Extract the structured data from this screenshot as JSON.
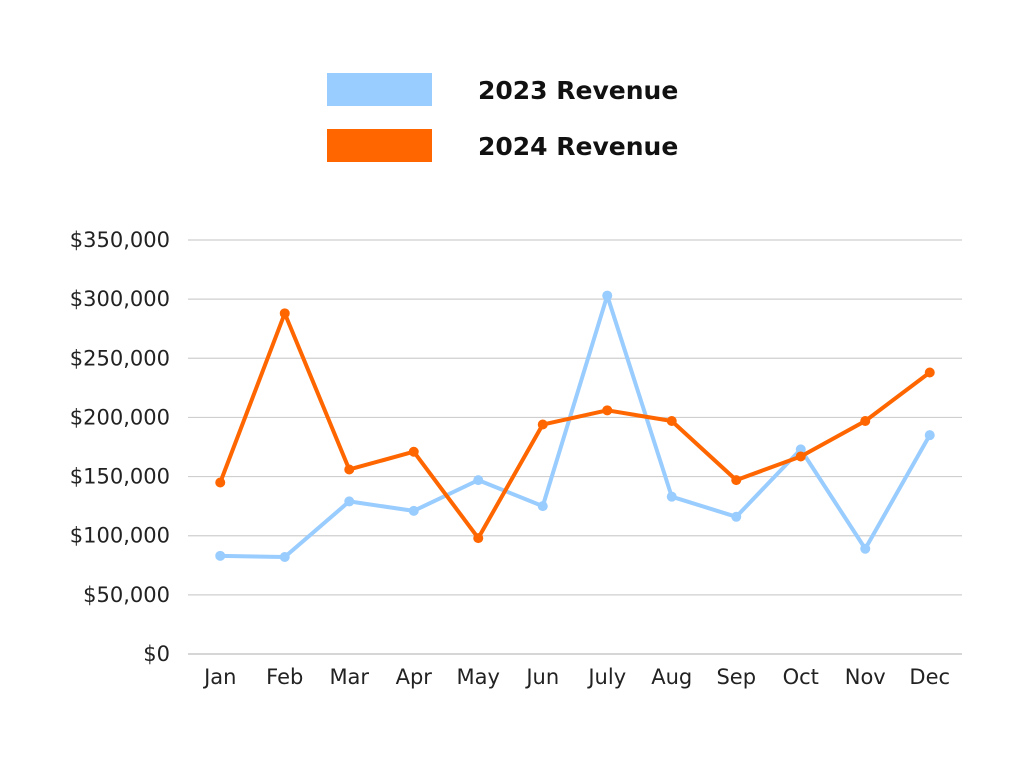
{
  "chart_data": {
    "type": "line",
    "title": "",
    "xlabel": "",
    "ylabel": "",
    "categories": [
      "Jan",
      "Feb",
      "Mar",
      "Apr",
      "May",
      "Jun",
      "July",
      "Aug",
      "Sep",
      "Oct",
      "Nov",
      "Dec"
    ],
    "ylim": [
      0,
      350000
    ],
    "yticks": [
      0,
      50000,
      100000,
      150000,
      200000,
      250000,
      300000,
      350000
    ],
    "ytick_labels": [
      "$0",
      "$50,000",
      "$100,000",
      "$150,000",
      "$200,000",
      "$250,000",
      "$300,000",
      "$350,000"
    ],
    "grid": true,
    "legend_position": "top-center",
    "series": [
      {
        "name": "2023 Revenue",
        "color": "#99ccff",
        "values": [
          83000,
          82000,
          129000,
          121000,
          147000,
          125000,
          303000,
          133000,
          116000,
          173000,
          89000,
          185000
        ]
      },
      {
        "name": "2024 Revenue",
        "color": "#ff6600",
        "values": [
          145000,
          288000,
          156000,
          171000,
          98000,
          194000,
          206000,
          197000,
          147000,
          167000,
          197000,
          238000
        ]
      }
    ]
  }
}
